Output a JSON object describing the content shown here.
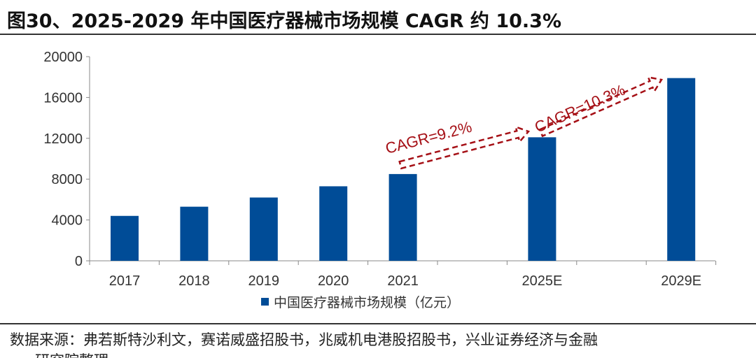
{
  "title": "图30、2025-2029 年中国医疗器械市场规模 CAGR 约 10.3%",
  "source": "数据来源：弗若斯特沙利文，赛诺威盛招股书，兆威机电港股招股书，兴业证券经济与金融",
  "source_line2": "研究院整理",
  "colors": {
    "bar": "#004C97",
    "annotation": "#A50F15"
  },
  "chart_data": {
    "type": "bar",
    "categories": [
      "2017",
      "2018",
      "2019",
      "2020",
      "2021",
      "2025E",
      "2029E"
    ],
    "series": [
      {
        "name": "中国医疗器械市场规模（亿元）",
        "values": [
          4400,
          5300,
          6200,
          7300,
          8500,
          12100,
          17900
        ]
      }
    ],
    "ylim": [
      0,
      20000
    ],
    "yticks": [
      0,
      4000,
      8000,
      12000,
      16000,
      20000
    ],
    "legend": "bottom",
    "grid": false,
    "annotations": [
      {
        "text": "CAGR=9.2%",
        "from": "2021",
        "to": "2025E"
      },
      {
        "text": "CAGR=10.3%",
        "from": "2025E",
        "to": "2029E"
      }
    ]
  }
}
